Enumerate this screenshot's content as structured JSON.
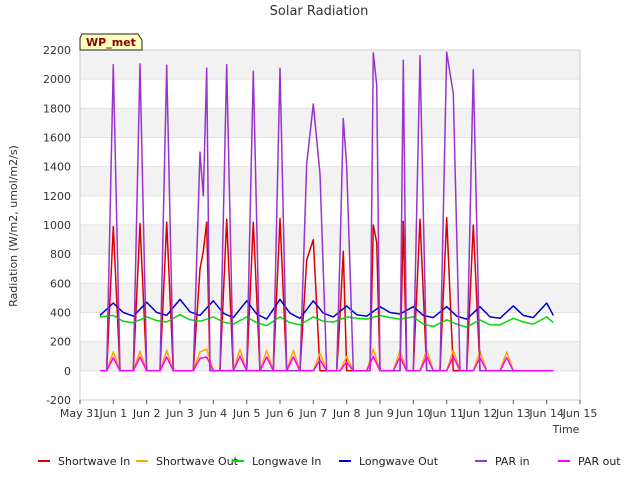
{
  "chart_data": {
    "type": "line",
    "title": "Solar Radiation",
    "xlabel": "Time",
    "ylabel": "Radiation (W/m2, umol/m2/s)",
    "ylim": [
      -200,
      2200
    ],
    "xlim": [
      0,
      15
    ],
    "y_ticks": [
      -200,
      0,
      200,
      400,
      600,
      800,
      1000,
      1200,
      1400,
      1600,
      1800,
      2000,
      2200
    ],
    "x_ticks": [
      {
        "x": 0,
        "label": "May 31"
      },
      {
        "x": 1,
        "label": "Jun 1"
      },
      {
        "x": 2,
        "label": "Jun 2"
      },
      {
        "x": 3,
        "label": "Jun 3"
      },
      {
        "x": 4,
        "label": "Jun 4"
      },
      {
        "x": 5,
        "label": "Jun 5"
      },
      {
        "x": 6,
        "label": "Jun 6"
      },
      {
        "x": 7,
        "label": "Jun 7"
      },
      {
        "x": 8,
        "label": "Jun 8"
      },
      {
        "x": 9,
        "label": "Jun 9"
      },
      {
        "x": 10,
        "label": "Jun 10"
      },
      {
        "x": 11,
        "label": "Jun 11"
      },
      {
        "x": 12,
        "label": "Jun 12"
      },
      {
        "x": 13,
        "label": "Jun 13"
      },
      {
        "x": 14,
        "label": "Jun 14"
      },
      {
        "x": 15,
        "label": "Jun 15"
      }
    ],
    "grid": "horizontal bands",
    "legend": "bottom",
    "annotation": "WP_met",
    "series": [
      {
        "name": "Shortwave In",
        "color": "#dd0000",
        "x": [
          0.6,
          0.8,
          1.0,
          1.2,
          1.4,
          1.6,
          1.8,
          2.0,
          2.2,
          2.4,
          2.6,
          2.8,
          3.0,
          3.2,
          3.4,
          3.6,
          3.7,
          3.8,
          3.9,
          4.0,
          4.1,
          4.2,
          4.4,
          4.6,
          4.8,
          5.0,
          5.2,
          5.4,
          5.6,
          5.8,
          6.0,
          6.2,
          6.4,
          6.6,
          6.8,
          7.0,
          7.2,
          7.4,
          7.6,
          7.7,
          7.8,
          7.9,
          8.0,
          8.2,
          8.4,
          8.7,
          8.8,
          8.9,
          9.0,
          9.2,
          9.4,
          9.6,
          9.7,
          9.8,
          9.9,
          10.0,
          10.2,
          10.4,
          10.6,
          10.8,
          11.0,
          11.2,
          11.4,
          11.6,
          11.8,
          12.0,
          12.2,
          12.4,
          12.6,
          12.8,
          12.9,
          13.0,
          13.2,
          13.4,
          13.6,
          13.8,
          14.0,
          14.2
        ],
        "y": [
          0,
          0,
          990,
          0,
          0,
          0,
          1010,
          0,
          0,
          0,
          1020,
          0,
          0,
          0,
          0,
          700,
          820,
          1020,
          0,
          0,
          0,
          0,
          1040,
          0,
          0,
          0,
          1020,
          0,
          0,
          0,
          1045,
          0,
          0,
          0,
          760,
          900,
          0,
          0,
          0,
          0,
          380,
          820,
          0,
          0,
          0,
          0,
          1000,
          880,
          0,
          0,
          0,
          0,
          1025,
          0,
          0,
          0,
          1040,
          0,
          0,
          0,
          1050,
          0,
          0,
          0,
          1000,
          0,
          0,
          0,
          0,
          0,
          0,
          0,
          0,
          0,
          0,
          0,
          0,
          0
        ]
      },
      {
        "name": "Shortwave Out",
        "color": "#ffa500",
        "x": [
          0.6,
          0.8,
          1.0,
          1.2,
          1.4,
          1.6,
          1.8,
          2.0,
          2.2,
          2.4,
          2.6,
          2.8,
          3.0,
          3.2,
          3.4,
          3.6,
          3.8,
          4.0,
          4.2,
          4.4,
          4.6,
          4.8,
          5.0,
          5.2,
          5.4,
          5.6,
          5.8,
          6.0,
          6.2,
          6.4,
          6.6,
          6.8,
          7.0,
          7.2,
          7.4,
          7.6,
          7.8,
          8.0,
          8.2,
          8.4,
          8.6,
          8.8,
          9.0,
          9.2,
          9.4,
          9.6,
          9.8,
          10.0,
          10.2,
          10.4,
          10.6,
          10.8,
          11.0,
          11.2,
          11.4,
          11.6,
          11.8,
          12.0,
          12.2,
          12.4,
          12.6,
          12.8,
          13.0,
          13.2,
          13.4,
          13.6,
          13.8,
          14.0,
          14.2
        ],
        "y": [
          0,
          0,
          130,
          0,
          0,
          0,
          135,
          0,
          0,
          0,
          140,
          0,
          0,
          0,
          0,
          130,
          150,
          0,
          0,
          0,
          0,
          150,
          0,
          0,
          0,
          140,
          0,
          0,
          0,
          140,
          0,
          0,
          0,
          120,
          0,
          0,
          0,
          100,
          0,
          0,
          0,
          150,
          0,
          0,
          0,
          140,
          0,
          0,
          0,
          145,
          0,
          0,
          0,
          145,
          0,
          0,
          0,
          135,
          0,
          0,
          0,
          130,
          0,
          0,
          0,
          0,
          0,
          0,
          0
        ]
      },
      {
        "name": "Longwave In",
        "color": "#00dd00",
        "x": [
          0.6,
          1.0,
          1.3,
          1.6,
          2.0,
          2.3,
          2.6,
          3.0,
          3.3,
          3.6,
          4.0,
          4.3,
          4.6,
          5.0,
          5.3,
          5.6,
          6.0,
          6.3,
          6.6,
          7.0,
          7.3,
          7.6,
          8.0,
          8.3,
          8.6,
          9.0,
          9.3,
          9.6,
          10.0,
          10.3,
          10.6,
          11.0,
          11.3,
          11.6,
          12.0,
          12.3,
          12.6,
          13.0,
          13.3,
          13.6,
          14.0,
          14.2
        ],
        "y": [
          370,
          380,
          340,
          330,
          370,
          345,
          335,
          385,
          350,
          340,
          370,
          335,
          320,
          370,
          330,
          310,
          370,
          330,
          315,
          370,
          340,
          335,
          370,
          360,
          355,
          380,
          365,
          355,
          370,
          320,
          305,
          350,
          320,
          300,
          350,
          315,
          315,
          360,
          335,
          320,
          370,
          330
        ]
      },
      {
        "name": "Longwave Out",
        "color": "#0000cc",
        "x": [
          0.6,
          1.0,
          1.3,
          1.6,
          2.0,
          2.3,
          2.6,
          3.0,
          3.3,
          3.6,
          4.0,
          4.3,
          4.6,
          5.0,
          5.3,
          5.6,
          6.0,
          6.3,
          6.6,
          7.0,
          7.3,
          7.6,
          8.0,
          8.3,
          8.6,
          9.0,
          9.3,
          9.6,
          10.0,
          10.3,
          10.6,
          11.0,
          11.3,
          11.6,
          12.0,
          12.3,
          12.6,
          13.0,
          13.3,
          13.6,
          14.0,
          14.2
        ],
        "y": [
          380,
          465,
          400,
          375,
          470,
          400,
          380,
          490,
          405,
          380,
          480,
          395,
          365,
          480,
          390,
          355,
          490,
          395,
          360,
          480,
          395,
          370,
          445,
          385,
          375,
          440,
          400,
          390,
          440,
          380,
          365,
          440,
          375,
          355,
          440,
          370,
          360,
          445,
          380,
          365,
          465,
          380
        ]
      },
      {
        "name": "PAR in",
        "color": "#9933cc",
        "x": [
          0.6,
          0.8,
          1.0,
          1.2,
          1.4,
          1.6,
          1.8,
          2.0,
          2.2,
          2.4,
          2.6,
          2.8,
          3.0,
          3.2,
          3.4,
          3.6,
          3.7,
          3.8,
          3.9,
          4.0,
          4.1,
          4.2,
          4.4,
          4.6,
          4.8,
          5.0,
          5.2,
          5.4,
          5.6,
          5.8,
          6.0,
          6.2,
          6.4,
          6.6,
          6.8,
          7.0,
          7.2,
          7.4,
          7.6,
          7.7,
          7.8,
          7.9,
          8.0,
          8.2,
          8.4,
          8.7,
          8.8,
          8.9,
          9.0,
          9.2,
          9.4,
          9.6,
          9.7,
          9.8,
          9.9,
          10.0,
          10.2,
          10.4,
          10.6,
          10.8,
          11.0,
          11.2,
          11.4,
          11.6,
          11.8,
          12.0,
          12.2,
          12.4,
          12.6,
          12.8,
          13.0,
          13.2,
          13.4,
          13.6,
          13.8,
          14.0,
          14.2
        ],
        "y": [
          0,
          0,
          2100,
          0,
          0,
          0,
          2105,
          0,
          0,
          0,
          2095,
          0,
          0,
          0,
          0,
          1500,
          1200,
          2075,
          0,
          0,
          0,
          0,
          2100,
          0,
          0,
          0,
          2055,
          0,
          0,
          0,
          2075,
          0,
          0,
          0,
          1420,
          1830,
          1350,
          0,
          0,
          0,
          800,
          1730,
          1400,
          0,
          0,
          0,
          2180,
          1960,
          0,
          0,
          0,
          0,
          2130,
          0,
          0,
          0,
          2160,
          0,
          0,
          0,
          2185,
          1900,
          0,
          0,
          2065,
          0,
          0,
          0,
          0,
          0,
          0,
          0,
          0,
          0,
          0,
          0,
          0
        ]
      },
      {
        "name": "PAR out",
        "color": "#ff00ff",
        "x": [
          0.6,
          0.8,
          1.0,
          1.2,
          1.4,
          1.6,
          1.8,
          2.0,
          2.2,
          2.4,
          2.6,
          2.8,
          3.0,
          3.2,
          3.4,
          3.6,
          3.8,
          4.0,
          4.2,
          4.4,
          4.6,
          4.8,
          5.0,
          5.2,
          5.4,
          5.6,
          5.8,
          6.0,
          6.2,
          6.4,
          6.6,
          6.8,
          7.0,
          7.2,
          7.4,
          7.6,
          7.8,
          8.0,
          8.2,
          8.4,
          8.6,
          8.8,
          9.0,
          9.2,
          9.4,
          9.6,
          9.8,
          10.0,
          10.2,
          10.4,
          10.6,
          10.8,
          11.0,
          11.2,
          11.4,
          11.6,
          11.8,
          12.0,
          12.2,
          12.4,
          12.6,
          12.8,
          13.0,
          13.2,
          13.4,
          13.6,
          13.8,
          14.0,
          14.2
        ],
        "y": [
          0,
          0,
          90,
          0,
          0,
          0,
          95,
          0,
          0,
          0,
          95,
          0,
          0,
          0,
          0,
          85,
          95,
          0,
          0,
          0,
          0,
          100,
          0,
          0,
          0,
          95,
          0,
          0,
          0,
          95,
          0,
          0,
          0,
          75,
          0,
          0,
          0,
          60,
          0,
          0,
          0,
          100,
          0,
          0,
          0,
          95,
          0,
          0,
          0,
          100,
          0,
          0,
          0,
          100,
          0,
          0,
          0,
          90,
          0,
          0,
          0,
          90,
          0,
          0,
          0,
          0,
          0,
          0,
          0
        ]
      }
    ]
  }
}
